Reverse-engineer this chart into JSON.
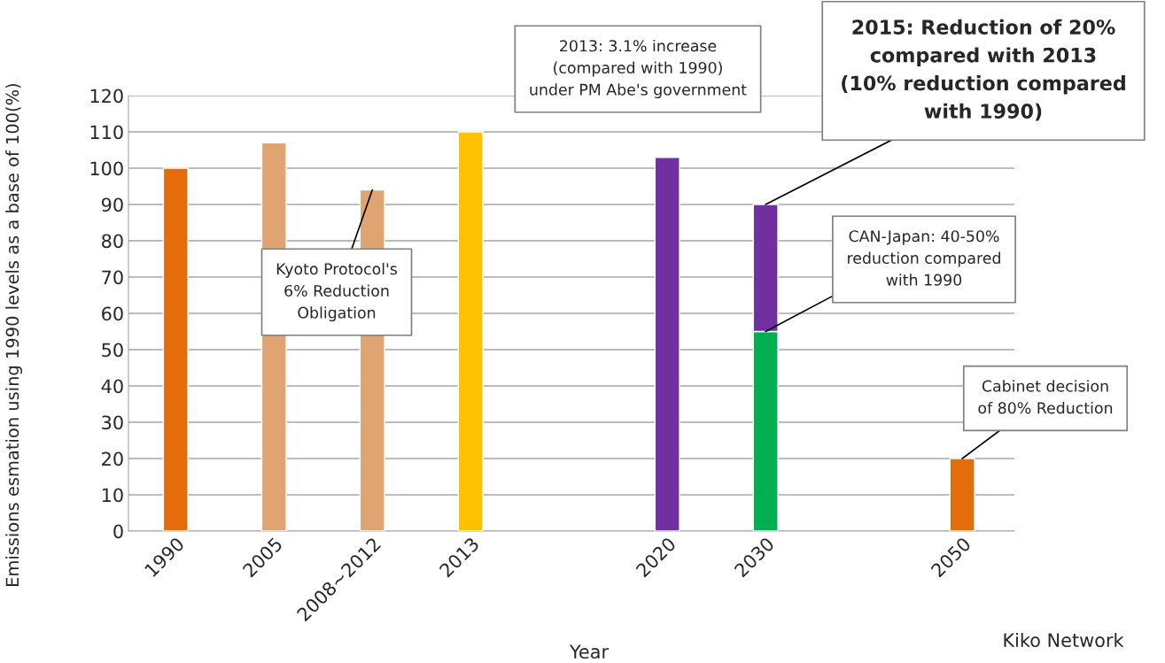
{
  "chart_data": {
    "type": "bar",
    "stacked": true,
    "xlabel": "Year",
    "ylabel": "Emissions esmation using 1990 levels as a base of 100(%)",
    "categories": [
      "1990",
      "2005",
      "2008~2012",
      "2013",
      null,
      "2020",
      "2030",
      null,
      "2050"
    ],
    "series": [
      {
        "values": [
          100,
          107,
          94,
          110,
          null,
          103,
          55,
          null,
          20
        ],
        "colors": [
          "#e46c0a",
          "#e0a473",
          "#e0a473",
          "#ffc000",
          "#7030a0",
          "#7030a0",
          "#00b050",
          "#e46c0a",
          "#e46c0a"
        ]
      },
      {
        "values": [
          null,
          null,
          null,
          null,
          null,
          null,
          35,
          null,
          null
        ],
        "color": "#7030a0"
      }
    ],
    "ylim": [
      0,
      120
    ],
    "yticks": [
      0,
      10,
      20,
      30,
      40,
      50,
      60,
      70,
      80,
      90,
      100,
      110,
      120
    ],
    "grid": "y",
    "annotations": [
      {
        "text": "Kyoto Protocol's\n6% Reduction\nObligation",
        "x": "2008~2012",
        "y": 94
      },
      "2013: 3.1% increase\n(compared with 1990)\nunder PM Abe's government",
      {
        "text": "2015: Reduction of 20%\ncompared with 2013\n(10% reduction compared\nwith 1990)",
        "x": "2030",
        "y": 90
      },
      {
        "text": "CAN-Japan: 40-50%\nreduction compared\nwith 1990",
        "x": "2030",
        "y": 55
      },
      {
        "text": "Cabinet decision\nof 80% Reduction",
        "x": "2050",
        "y": 20
      },
      "Kiko Network"
    ]
  }
}
